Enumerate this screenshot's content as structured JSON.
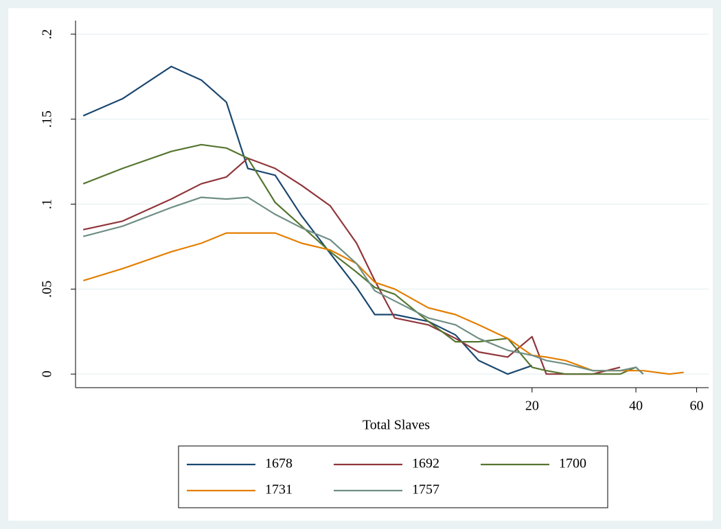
{
  "chart_data": {
    "type": "line",
    "xlabel": "Total Slaves",
    "xscale": "log",
    "xlim": [
      0.95,
      65
    ],
    "xticks": [
      20,
      40,
      60
    ],
    "ylim": [
      -0.008,
      0.208
    ],
    "yticks": [
      0,
      {
        "value": 0.05,
        "label": ".05"
      },
      {
        "value": 0.1,
        "label": ".1"
      },
      {
        "value": 0.15,
        "label": ".15"
      },
      {
        "value": 0.2,
        "label": ".2"
      }
    ],
    "grid": true,
    "legend": "bottom",
    "series": [
      {
        "name": "1678",
        "color": "#1a476f",
        "x": [
          1,
          1.3,
          1.8,
          2.2,
          2.6,
          3,
          3.6,
          4.3,
          5.2,
          6.2,
          7,
          8,
          10,
          12,
          14,
          17,
          20
        ],
        "values": [
          0.152,
          0.162,
          0.181,
          0.173,
          0.16,
          0.121,
          0.117,
          0.093,
          0.071,
          0.051,
          0.035,
          0.035,
          0.031,
          0.023,
          0.008,
          0,
          0.005
        ]
      },
      {
        "name": "1692",
        "color": "#90353b",
        "x": [
          1,
          1.3,
          1.8,
          2.2,
          2.6,
          3,
          3.6,
          4.3,
          5.2,
          6.2,
          7,
          8,
          10,
          12,
          14,
          17,
          20,
          22,
          25,
          30,
          36
        ],
        "values": [
          0.085,
          0.09,
          0.103,
          0.112,
          0.116,
          0.127,
          0.121,
          0.111,
          0.099,
          0.077,
          0.055,
          0.033,
          0.029,
          0.021,
          0.013,
          0.01,
          0.022,
          0,
          0,
          0,
          0.004
        ]
      },
      {
        "name": "1700",
        "color": "#55752f",
        "x": [
          1,
          1.3,
          1.8,
          2.2,
          2.6,
          3,
          3.6,
          4.3,
          5.2,
          6.2,
          7,
          8,
          10,
          12,
          14,
          17,
          20,
          22,
          25,
          30,
          36,
          40,
          42
        ],
        "values": [
          0.112,
          0.121,
          0.131,
          0.135,
          0.133,
          0.127,
          0.101,
          0.087,
          0.072,
          0.06,
          0.051,
          0.047,
          0.031,
          0.019,
          0.019,
          0.021,
          0.004,
          0.002,
          0,
          0,
          0,
          0.004,
          0
        ]
      },
      {
        "name": "1731",
        "color": "#e37e00",
        "x": [
          1,
          1.3,
          1.8,
          2.2,
          2.6,
          3,
          3.6,
          4.3,
          5.2,
          6.2,
          7,
          8,
          10,
          12,
          14,
          17,
          20,
          22,
          25,
          30,
          36,
          42,
          50,
          55
        ],
        "values": [
          0.055,
          0.062,
          0.072,
          0.077,
          0.083,
          0.083,
          0.083,
          0.077,
          0.073,
          0.065,
          0.054,
          0.05,
          0.039,
          0.035,
          0.029,
          0.021,
          0.011,
          0.01,
          0.008,
          0.002,
          0.002,
          0.002,
          0,
          0.001
        ]
      },
      {
        "name": "1757",
        "color": "#6e8e84",
        "x": [
          1,
          1.3,
          1.8,
          2.2,
          2.6,
          3,
          3.6,
          4.3,
          5.2,
          6.2,
          7,
          8,
          10,
          12,
          14,
          17,
          20,
          22,
          25,
          30,
          36,
          40,
          42
        ],
        "values": [
          0.081,
          0.087,
          0.098,
          0.104,
          0.103,
          0.104,
          0.094,
          0.086,
          0.079,
          0.065,
          0.049,
          0.043,
          0.033,
          0.029,
          0.021,
          0.014,
          0.011,
          0.008,
          0.006,
          0.002,
          0.002,
          0.004,
          0
        ]
      }
    ]
  }
}
